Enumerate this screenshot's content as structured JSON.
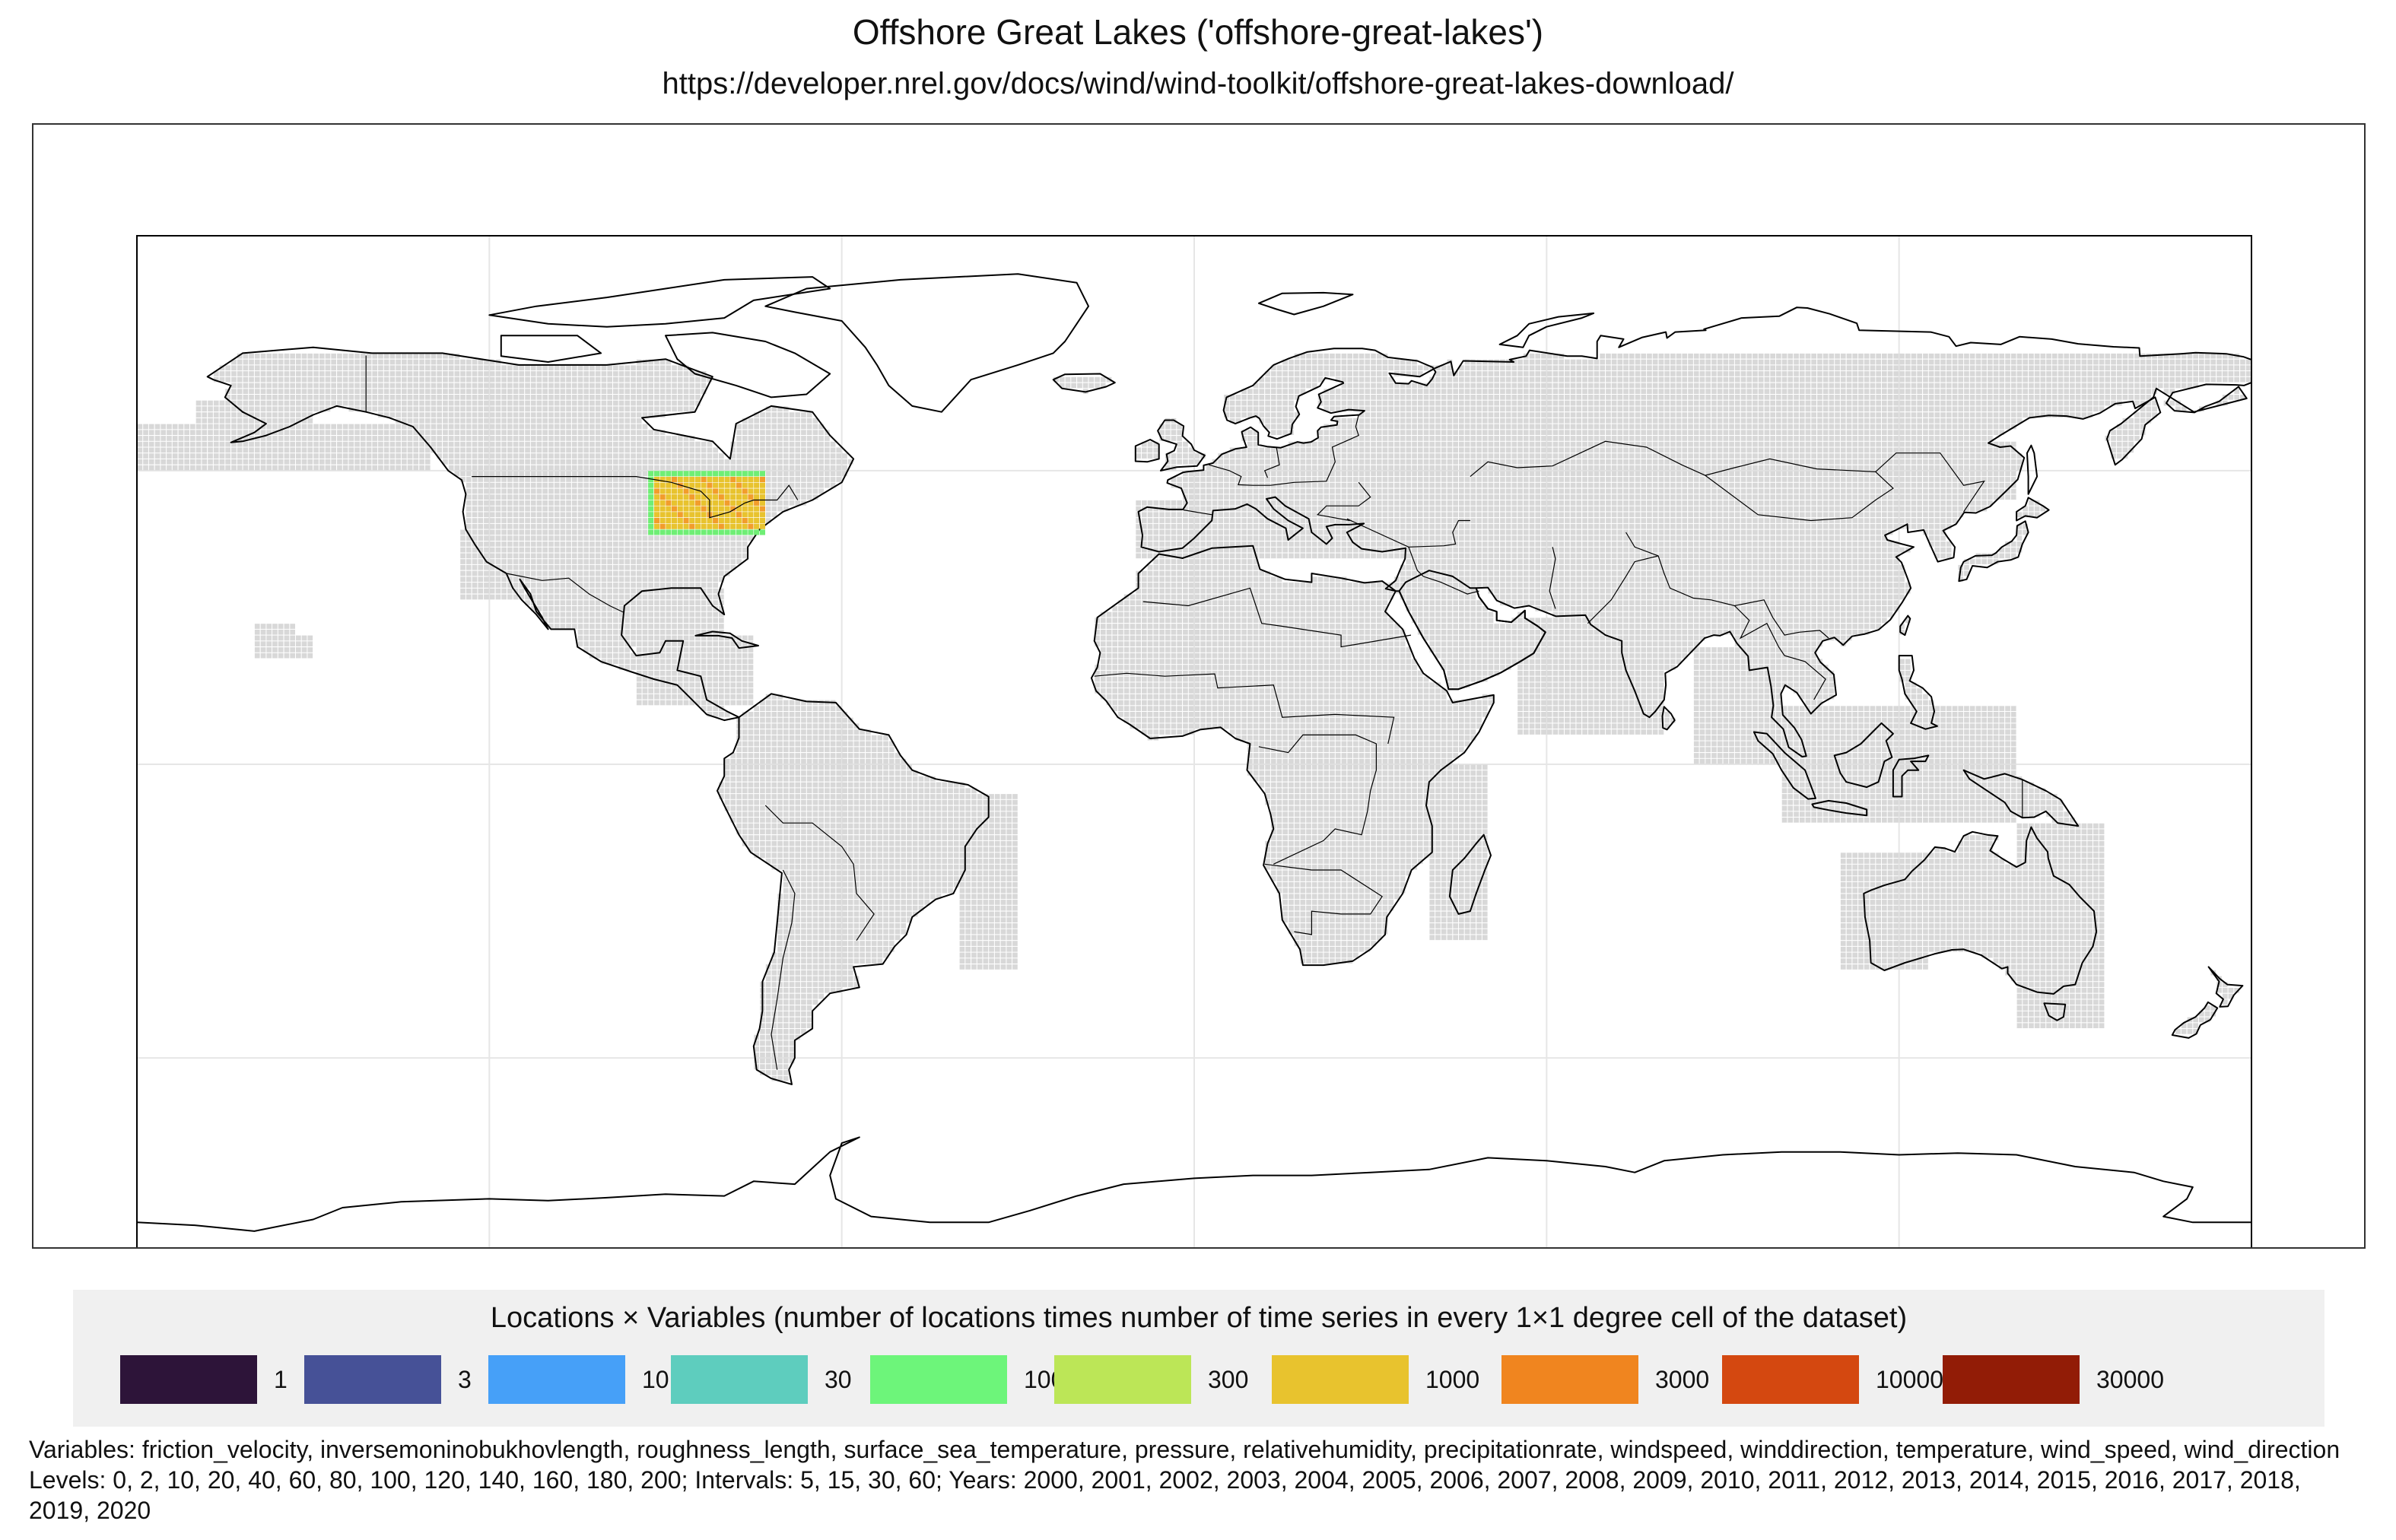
{
  "header": {
    "title": "Offshore Great Lakes ('offshore-great-lakes')",
    "subtitle": "https://developer.nrel.gov/docs/wind/wind-toolkit/offshore-great-lakes-download/"
  },
  "map": {
    "projection": "equirectangular",
    "extent": {
      "lon": [
        -180,
        180
      ],
      "lat": [
        -90,
        90
      ]
    },
    "graticule_lon": [
      -120,
      -60,
      0,
      60,
      120
    ],
    "graticule_lat": [
      -50,
      0,
      50
    ],
    "coverage_fill_color": "#e5e5e5",
    "coverage_cell_color": "#d8d8d8",
    "land_outline_color": "#000000",
    "highlight_region": {
      "name": "Great Lakes",
      "lon": [
        -93,
        -73
      ],
      "lat": [
        39,
        50
      ],
      "value_class": "1000",
      "color": "#E8C32E",
      "secondary_color": "#F29D2B",
      "edge_color": "#6FEE75"
    }
  },
  "legend": {
    "title": "Locations × Variables (number of locations times number of time series in every 1×1 degree cell of the dataset)",
    "items": [
      {
        "label": "1",
        "color": "#2D1439"
      },
      {
        "label": "3",
        "color": "#465197"
      },
      {
        "label": "10",
        "color": "#46A0F8"
      },
      {
        "label": "30",
        "color": "#5ECDBE"
      },
      {
        "label": "100",
        "color": "#6DF57A"
      },
      {
        "label": "300",
        "color": "#BCE657"
      },
      {
        "label": "1000",
        "color": "#E8C32E"
      },
      {
        "label": "3000",
        "color": "#F0851F"
      },
      {
        "label": "10000",
        "color": "#D44810"
      },
      {
        "label": "30000",
        "color": "#921C06"
      }
    ]
  },
  "footnote": "Variables: friction_velocity, inversemoninobukhovlength, roughness_length, surface_sea_temperature, pressure, relativehumidity, precipitationrate, windspeed, winddirection, temperature, wind_speed, wind_direction Levels: 0, 2, 10, 20, 40, 60, 80, 100, 120, 140, 160, 180, 200; Intervals: 5, 15, 30, 60; Years: 2000, 2001, 2002, 2003, 2004, 2005, 2006, 2007, 2008, 2009, 2010, 2011, 2012, 2013, 2014, 2015, 2016, 2017, 2018, 2019, 2020"
}
